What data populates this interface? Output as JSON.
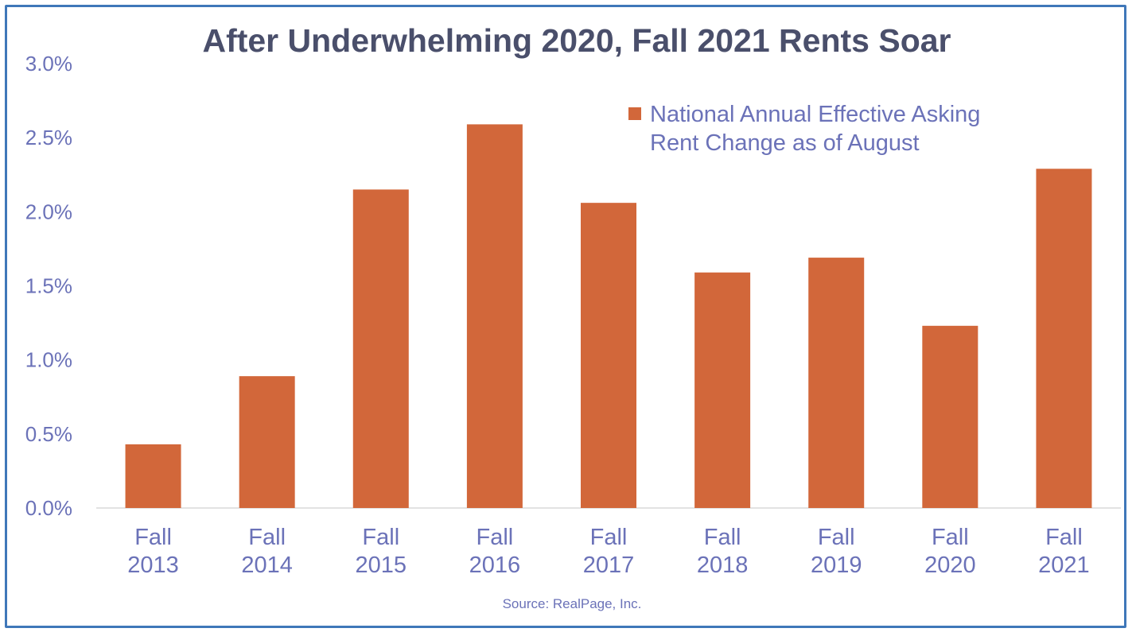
{
  "chart_data": {
    "type": "bar",
    "title": "After Underwhelming 2020, Fall 2021 Rents Soar",
    "categories": [
      [
        "Fall",
        "2013"
      ],
      [
        "Fall",
        "2014"
      ],
      [
        "Fall",
        "2015"
      ],
      [
        "Fall",
        "2016"
      ],
      [
        "Fall",
        "2017"
      ],
      [
        "Fall",
        "2018"
      ],
      [
        "Fall",
        "2019"
      ],
      [
        "Fall",
        "2020"
      ],
      [
        "Fall",
        "2021"
      ]
    ],
    "series": [
      {
        "name_lines": [
          "National Annual Effective Asking",
          "Rent Change as of August"
        ],
        "values": [
          0.43,
          0.89,
          2.15,
          2.59,
          2.06,
          1.59,
          1.69,
          1.23,
          2.29
        ],
        "color": "#d2673a"
      }
    ],
    "ylim": [
      0,
      3.0
    ],
    "yticks": [
      "0.0%",
      "0.5%",
      "1.0%",
      "1.5%",
      "2.0%",
      "2.5%",
      "3.0%"
    ],
    "ytick_values": [
      0,
      0.5,
      1.0,
      1.5,
      2.0,
      2.5,
      3.0
    ],
    "grid": false,
    "legend_position": "top-right",
    "source": "Source: RealPage, Inc."
  },
  "colors": {
    "border": "#3f77b9",
    "title": "#4a4f6b",
    "axis_text": "#6b72b8",
    "bar": "#d2673a",
    "baseline": "#d9d9d9"
  }
}
